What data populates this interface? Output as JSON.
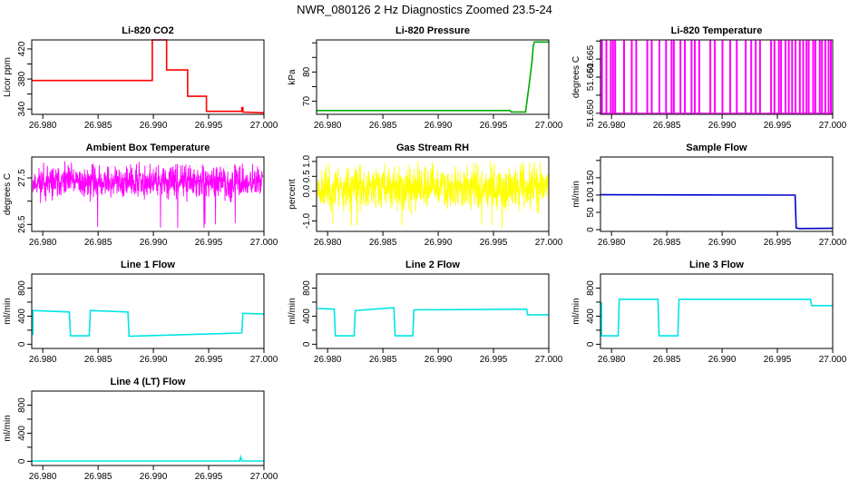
{
  "figure": {
    "title": "NWR_080126  2 Hz Diagnostics Zoomed 23.5-24"
  },
  "chart_data": [
    {
      "type": "line",
      "title": "Li-820 CO2",
      "xlabel": "",
      "ylabel": "Licor ppm",
      "color": "#ff0000",
      "xlim": [
        26.979,
        27.0
      ],
      "ylim": [
        333,
        432
      ],
      "xticks": [
        26.98,
        26.985,
        26.99,
        26.995,
        27.0
      ],
      "xtick_labels": [
        "26.980",
        "26.985",
        "26.990",
        "26.995",
        "27.000"
      ],
      "yticks": [
        340,
        360,
        380,
        400,
        420
      ],
      "ytick_labels": [
        "340",
        "",
        "380",
        "",
        "420"
      ],
      "render": "line",
      "series": [
        {
          "x": [
            26.979,
            26.9899,
            26.9899,
            26.9912,
            26.9912,
            26.9931,
            26.9931,
            26.9948,
            26.9948,
            26.998,
            26.998,
            26.9981,
            26.9981,
            27.0
          ],
          "y": [
            378,
            378,
            432,
            432,
            392,
            392,
            357,
            357,
            337,
            337,
            342,
            342,
            336,
            335
          ]
        }
      ]
    },
    {
      "type": "line",
      "title": "Li-820 Pressure",
      "xlabel": "",
      "ylabel": "kPa",
      "color": "#00aa00",
      "xlim": [
        26.979,
        27.0
      ],
      "ylim": [
        65.5,
        91
      ],
      "xticks": [
        26.98,
        26.985,
        26.99,
        26.995,
        27.0
      ],
      "xtick_labels": [
        "26.980",
        "26.985",
        "26.990",
        "26.995",
        "27.000"
      ],
      "yticks": [
        70,
        75,
        80,
        85,
        90
      ],
      "ytick_labels": [
        "70",
        "",
        "80",
        "",
        ""
      ],
      "render": "line",
      "series": [
        {
          "x": [
            26.979,
            26.9965,
            26.9966,
            26.9979,
            26.9982,
            26.9985,
            26.9986,
            26.9987,
            27.0
          ],
          "y": [
            66.8,
            66.8,
            66.3,
            66.3,
            75,
            84,
            89,
            90.3,
            90.3
          ]
        }
      ]
    },
    {
      "type": "line",
      "title": "Li-820 Temperature",
      "xlabel": "",
      "ylabel": "degrees C",
      "color": "#ff00ff",
      "xlim": [
        26.979,
        27.0
      ],
      "ylim": [
        51.6497,
        51.6703
      ],
      "xticks": [
        26.98,
        26.985,
        26.99,
        26.995,
        27.0
      ],
      "xtick_labels": [
        "26.980",
        "26.985",
        "26.990",
        "26.995",
        "27.000"
      ],
      "yticks": [
        51.65,
        51.655,
        51.66,
        51.665,
        51.67
      ],
      "ytick_labels": [
        "51.650",
        "",
        "51.660",
        "51.665",
        ""
      ],
      "render": "switching",
      "low": 51.65,
      "high": 51.67,
      "high_times": [
        26.9791,
        26.9795,
        26.9799,
        26.9801,
        26.9803,
        26.9811,
        26.9818,
        26.9822,
        26.9832,
        26.9836,
        26.9843,
        26.9849,
        26.9854,
        26.9856,
        26.9862,
        26.9866,
        26.9872,
        26.9875,
        26.9879,
        26.9889,
        26.9893,
        26.99,
        26.9907,
        26.9913,
        26.9921,
        26.9926,
        26.993,
        26.9934,
        26.9944,
        26.9947,
        26.9951,
        26.9953,
        26.9957,
        26.996,
        26.9963,
        26.9966,
        26.997,
        26.9973,
        26.9976,
        26.9978,
        26.9982,
        26.9984,
        26.9988,
        26.999,
        26.9993,
        26.9996,
        26.9998
      ]
    },
    {
      "type": "line",
      "title": "Ambient Box Temperature",
      "xlabel": "",
      "ylabel": "degrees C",
      "color": "#ff00ff",
      "xlim": [
        26.979,
        27.0
      ],
      "ylim": [
        26.35,
        27.95
      ],
      "xticks": [
        26.98,
        26.985,
        26.99,
        26.995,
        27.0
      ],
      "xtick_labels": [
        "26.980",
        "26.985",
        "26.990",
        "26.995",
        "27.000"
      ],
      "yticks": [
        26.5,
        27.0,
        27.5
      ],
      "ytick_labels": [
        "26.5",
        "",
        "27.5"
      ],
      "render": "noise",
      "mean": 27.4,
      "noise_amplitude": 0.16,
      "spike_low": 26.42,
      "spike_high": 27.85,
      "n_samples": 900,
      "seed": 11
    },
    {
      "type": "line",
      "title": "Gas Stream RH",
      "xlabel": "",
      "ylabel": "percent",
      "color": "#ffff00",
      "xlim": [
        26.979,
        27.0
      ],
      "ylim": [
        -1.35,
        1.15
      ],
      "xticks": [
        26.98,
        26.985,
        26.99,
        26.995,
        27.0
      ],
      "xtick_labels": [
        "26.980",
        "26.985",
        "26.990",
        "26.995",
        "27.000"
      ],
      "yticks": [
        -1.0,
        -0.5,
        0.0,
        0.5,
        1.0
      ],
      "ytick_labels": [
        "-1.0",
        "",
        "0.0",
        "0.5",
        "1.0"
      ],
      "render": "noise",
      "mean": 0.1,
      "noise_amplitude": 0.35,
      "spike_low": -1.25,
      "spike_high": 1.05,
      "n_samples": 900,
      "seed": 23
    },
    {
      "type": "line",
      "title": "Sample Flow",
      "xlabel": "",
      "ylabel": "ml/min",
      "color": "#0000cc",
      "xlim": [
        26.979,
        27.0
      ],
      "ylim": [
        -5,
        210
      ],
      "xticks": [
        26.98,
        26.985,
        26.99,
        26.995,
        27.0
      ],
      "xtick_labels": [
        "26.980",
        "26.985",
        "26.990",
        "26.995",
        "27.000"
      ],
      "yticks": [
        0,
        50,
        100,
        150,
        200
      ],
      "ytick_labels": [
        "0",
        "50",
        "100",
        "150",
        ""
      ],
      "render": "line",
      "series": [
        {
          "x": [
            26.979,
            26.9966,
            26.9967,
            26.997,
            27.0
          ],
          "y": [
            101,
            100,
            5,
            3,
            4
          ]
        }
      ]
    },
    {
      "type": "line",
      "title": "Line 1 Flow",
      "xlabel": "",
      "ylabel": "ml/min",
      "color": "#00e5e5",
      "xlim": [
        26.979,
        27.0
      ],
      "ylim": [
        -60,
        1000
      ],
      "xticks": [
        26.98,
        26.985,
        26.99,
        26.995,
        27.0
      ],
      "xtick_labels": [
        "26.980",
        "26.985",
        "26.990",
        "26.995",
        "27.000"
      ],
      "yticks": [
        0,
        200,
        400,
        600,
        800
      ],
      "ytick_labels": [
        "0",
        "",
        "400",
        "",
        "800"
      ],
      "render": "line",
      "series": [
        {
          "x": [
            26.9791,
            26.9791,
            26.9824,
            26.9825,
            26.9842,
            26.9843,
            26.9877,
            26.9878,
            26.998,
            26.9981,
            27.0
          ],
          "y": [
            130,
            480,
            460,
            120,
            120,
            480,
            460,
            115,
            160,
            440,
            430
          ]
        }
      ]
    },
    {
      "type": "line",
      "title": "Line 2 Flow",
      "xlabel": "",
      "ylabel": "ml/min",
      "color": "#00e5e5",
      "xlim": [
        26.979,
        27.0
      ],
      "ylim": [
        -60,
        1000
      ],
      "xticks": [
        26.98,
        26.985,
        26.99,
        26.995,
        27.0
      ],
      "xtick_labels": [
        "26.980",
        "26.985",
        "26.990",
        "26.995",
        "27.000"
      ],
      "yticks": [
        0,
        200,
        400,
        600,
        800
      ],
      "ytick_labels": [
        "0",
        "",
        "400",
        "",
        "800"
      ],
      "render": "line",
      "series": [
        {
          "x": [
            26.9791,
            26.9806,
            26.9807,
            26.9824,
            26.9825,
            26.986,
            26.9861,
            26.9877,
            26.9878,
            26.998,
            26.9981,
            27.0
          ],
          "y": [
            510,
            500,
            120,
            120,
            480,
            520,
            120,
            120,
            490,
            500,
            420,
            420
          ]
        }
      ]
    },
    {
      "type": "line",
      "title": "Line 3 Flow",
      "xlabel": "",
      "ylabel": "ml/min",
      "color": "#00e5e5",
      "xlim": [
        26.979,
        27.0
      ],
      "ylim": [
        -60,
        1000
      ],
      "xticks": [
        26.98,
        26.985,
        26.99,
        26.995,
        27.0
      ],
      "xtick_labels": [
        "26.980",
        "26.985",
        "26.990",
        "26.995",
        "27.000"
      ],
      "yticks": [
        0,
        200,
        400,
        600,
        800
      ],
      "ytick_labels": [
        "0",
        "",
        "400",
        "",
        "800"
      ],
      "render": "line",
      "series": [
        {
          "x": [
            26.9791,
            26.9791,
            26.9806,
            26.9807,
            26.9842,
            26.9843,
            26.986,
            26.9861,
            26.998,
            26.9981,
            27.0
          ],
          "y": [
            600,
            120,
            120,
            640,
            640,
            120,
            120,
            640,
            640,
            550,
            550
          ]
        }
      ]
    },
    {
      "type": "line",
      "title": "Line 4 (LT) Flow",
      "xlabel": "",
      "ylabel": "ml/min",
      "color": "#00e5e5",
      "xlim": [
        26.979,
        27.0
      ],
      "ylim": [
        -60,
        1000
      ],
      "xticks": [
        26.98,
        26.985,
        26.99,
        26.995,
        27.0
      ],
      "xtick_labels": [
        "26.980",
        "26.985",
        "26.990",
        "26.995",
        "27.000"
      ],
      "yticks": [
        0,
        200,
        400,
        600,
        800
      ],
      "ytick_labels": [
        "0",
        "",
        "400",
        "",
        "800"
      ],
      "render": "line",
      "series": [
        {
          "x": [
            26.979,
            26.9978,
            26.9979,
            26.998,
            27.0
          ],
          "y": [
            5,
            5,
            60,
            5,
            5
          ]
        }
      ]
    }
  ]
}
